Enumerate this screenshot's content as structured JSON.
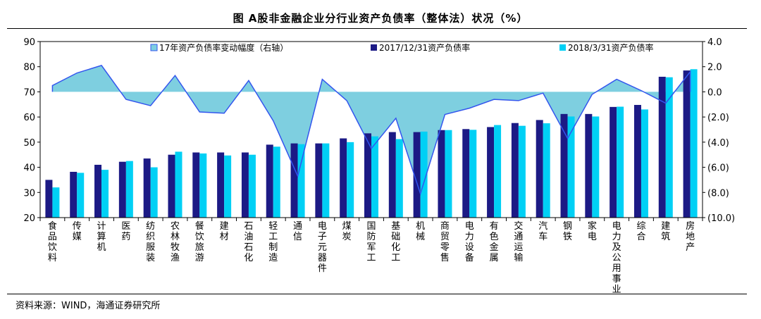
{
  "chart_data": {
    "type": "bar+area",
    "title": "图 A股非金融企业分行业资产负债率（整体法）状况（%）",
    "categories": [
      "食品饮料",
      "传媒",
      "计算机",
      "医药",
      "纺织服装",
      "农林牧渔",
      "餐饮旅游",
      "建材",
      "石油石化",
      "轻工制造",
      "通信",
      "电子元器件",
      "煤炭",
      "国防军工",
      "基础化工",
      "机械",
      "商贸零售",
      "电力设备",
      "有色金属",
      "交通运输",
      "汽车",
      "钢铁",
      "家电",
      "电力及公用事业",
      "综合",
      "建筑",
      "房地产"
    ],
    "series": [
      {
        "name": "17年资产负债率变动幅度（右轴）",
        "axis": "right",
        "type": "area",
        "color": "#7ecfe0",
        "values": [
          0.5,
          1.5,
          2.1,
          -0.6,
          -1.1,
          1.3,
          -1.6,
          -1.7,
          0.9,
          -2.3,
          -6.7,
          1.0,
          -0.7,
          -4.5,
          -2.1,
          -8.1,
          -1.8,
          -1.3,
          -0.6,
          -0.7,
          -0.1,
          -3.7,
          -0.2,
          1.0,
          0.1,
          -0.9,
          1.6
        ]
      },
      {
        "name": "2017/12/31资产负债率",
        "axis": "left",
        "type": "bar",
        "color": "#1c1a85",
        "values": [
          35.0,
          38.2,
          41.0,
          42.2,
          43.5,
          45.0,
          45.9,
          45.9,
          45.9,
          49.0,
          49.5,
          49.5,
          51.5,
          53.5,
          54.0,
          54.0,
          54.8,
          55.2,
          56.0,
          57.6,
          58.8,
          61.2,
          61.2,
          64.0,
          64.8,
          76.0,
          78.5
        ]
      },
      {
        "name": "2018/3/31资产负债率",
        "axis": "left",
        "type": "bar",
        "color": "#00d0f5",
        "values": [
          32.0,
          37.8,
          39.0,
          42.5,
          40.0,
          46.2,
          45.5,
          44.7,
          45.0,
          48.2,
          49.2,
          49.5,
          50.0,
          52.3,
          51.2,
          54.2,
          54.8,
          54.9,
          56.8,
          56.5,
          57.5,
          60.2,
          60.2,
          64.1,
          63.0,
          75.8,
          79.0
        ]
      }
    ],
    "y_left": {
      "min": 20,
      "max": 90,
      "ticks": [
        "20",
        "30",
        "40",
        "50",
        "60",
        "70",
        "80",
        "90"
      ]
    },
    "y_right": {
      "min": -10,
      "max": 4,
      "ticks": [
        "(10.0)",
        "(8.0)",
        "(6.0)",
        "(4.0)",
        "(2.0)",
        "0.0",
        "2.0",
        "4.0"
      ]
    },
    "legend_position": "top"
  },
  "source_text": "资料来源：WIND，海通证券研究所"
}
